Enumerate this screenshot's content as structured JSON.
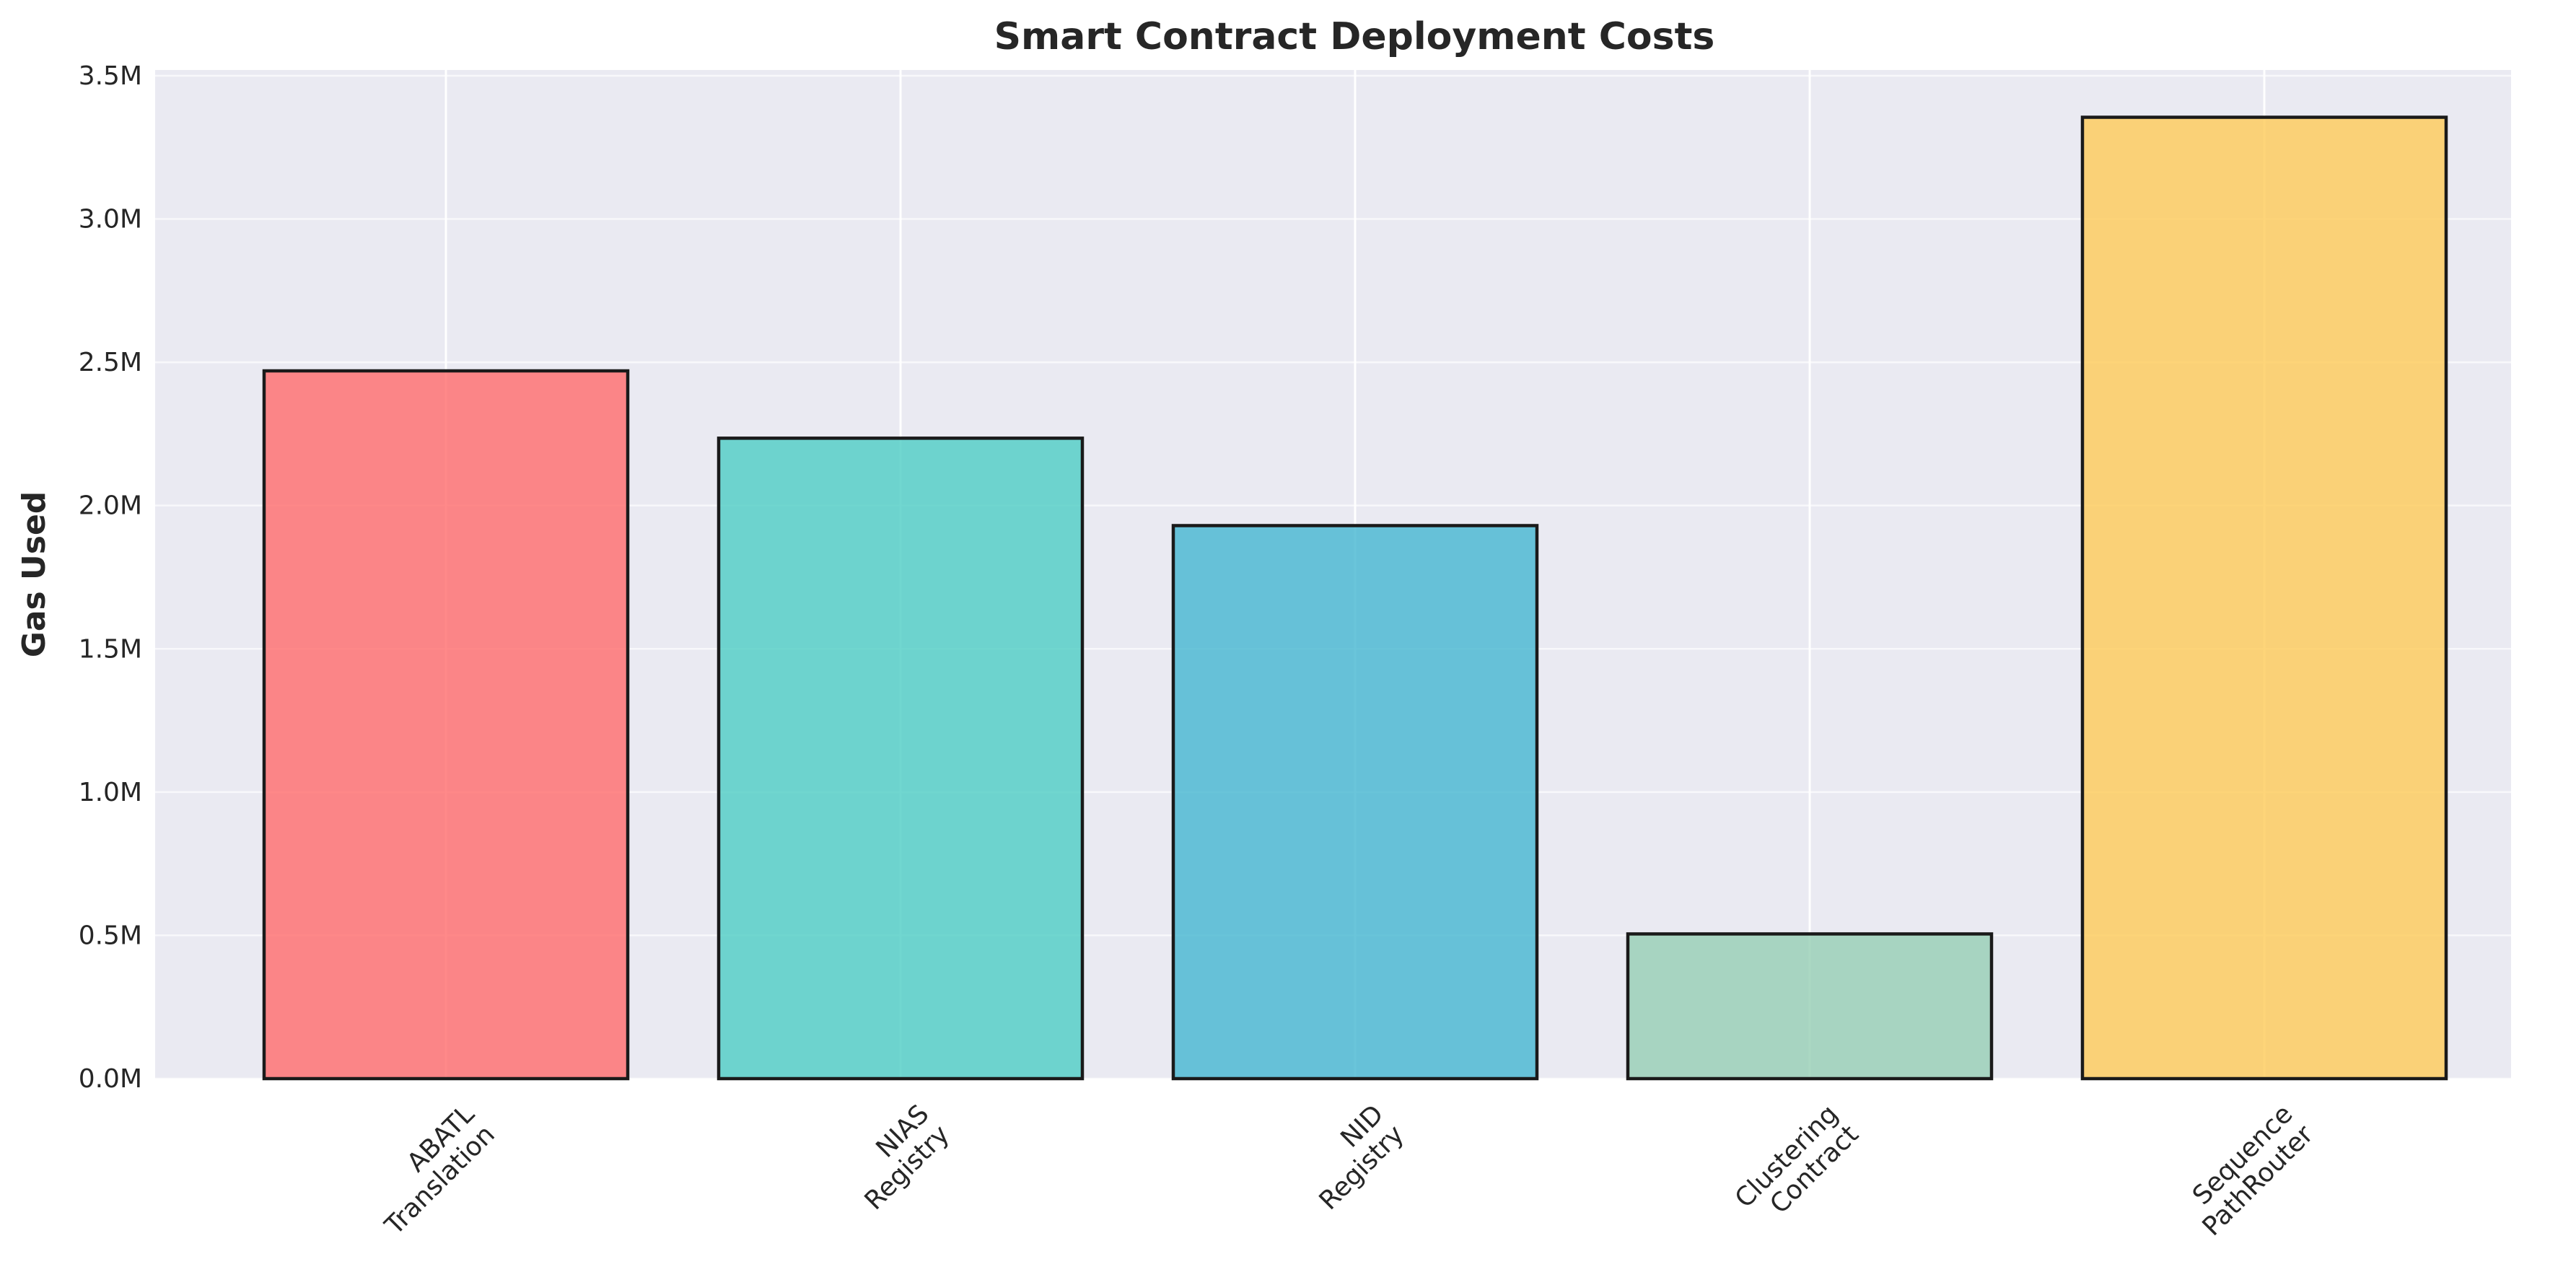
{
  "chart_data": {
    "type": "bar",
    "title": "Smart Contract Deployment Costs",
    "xlabel": "",
    "ylabel": "Gas Used",
    "categories": [
      [
        "ABATL",
        "Translation"
      ],
      [
        "NIAS",
        "Registry"
      ],
      [
        "NID",
        "Registry"
      ],
      [
        "Clustering",
        "Contract"
      ],
      [
        "Sequence",
        "PathRouter"
      ]
    ],
    "values": [
      2470000,
      2235000,
      1930000,
      505000,
      3355000
    ],
    "colors": [
      "#FF6B6B",
      "#4ECDC4",
      "#45B7D1",
      "#96CEB4",
      "#FECA57"
    ],
    "ylim": [
      0,
      3520000
    ],
    "yticks": [
      0,
      500000,
      1000000,
      1500000,
      2000000,
      2500000,
      3000000,
      3500000
    ],
    "ytick_labels": [
      "0.0M",
      "0.5M",
      "1.0M",
      "1.5M",
      "2.0M",
      "2.5M",
      "3.0M",
      "3.5M"
    ],
    "grid": true,
    "legend": "none",
    "background": "#EAEAF2"
  }
}
